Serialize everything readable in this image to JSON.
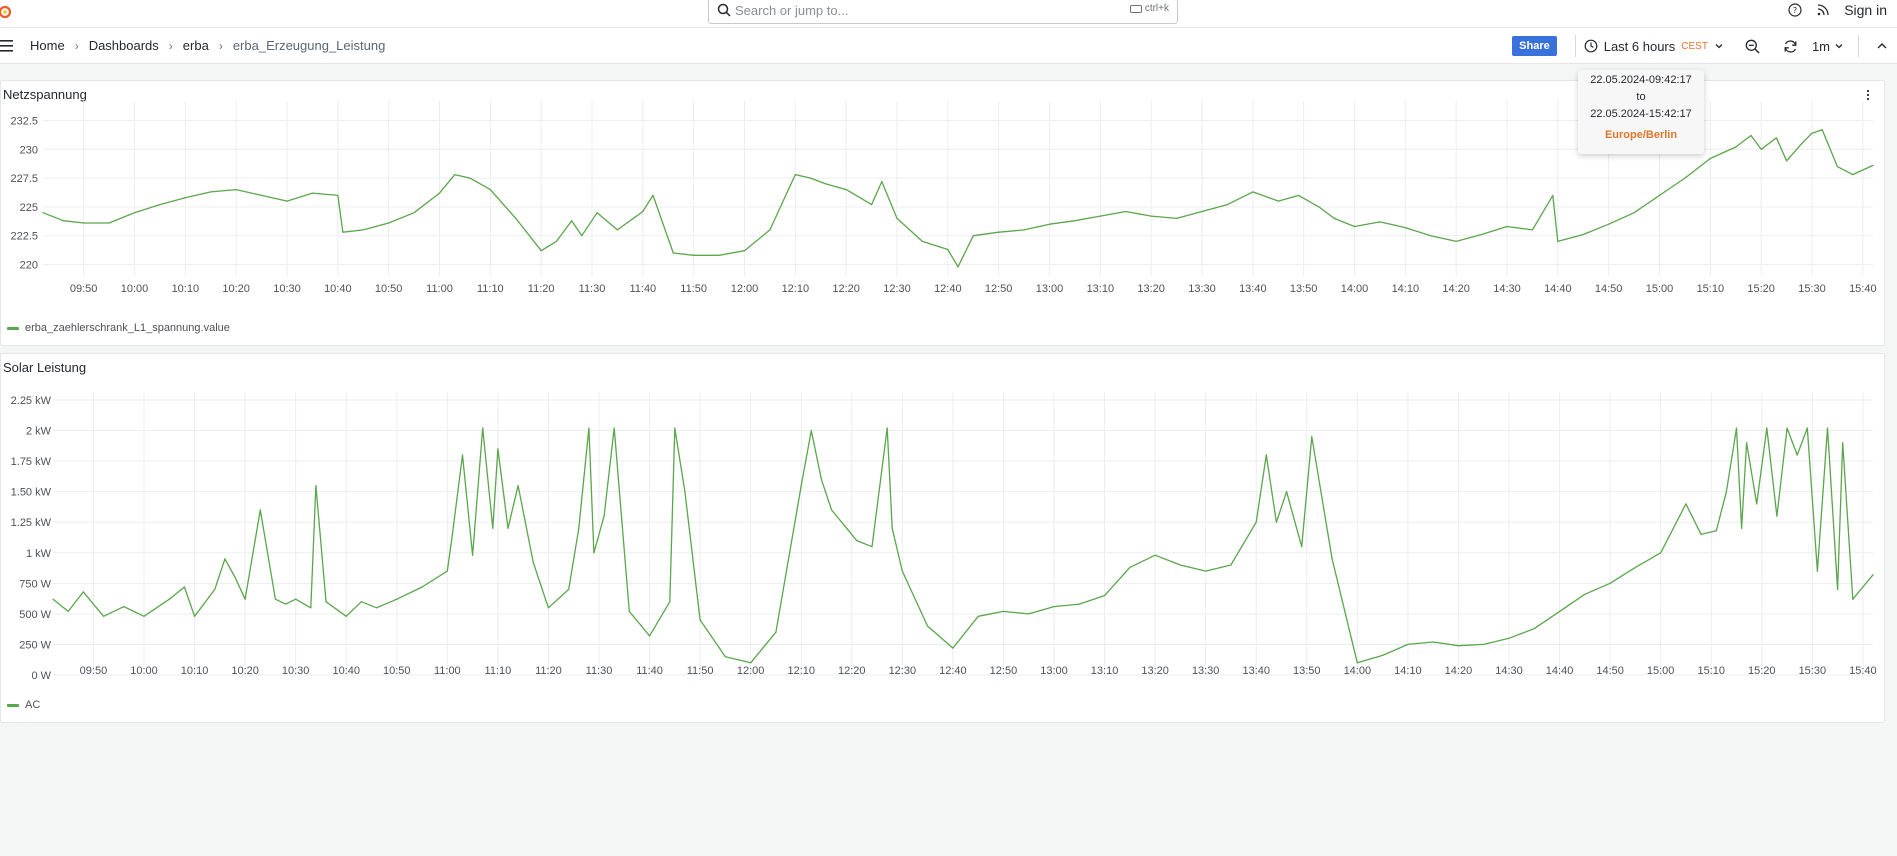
{
  "search": {
    "placeholder": "Search or jump to...",
    "shortcut": "ctrl+k"
  },
  "topbar": {
    "sign_in": "Sign in"
  },
  "breadcrumb": [
    "Home",
    "Dashboards",
    "erba",
    "erba_Erzeugung_Leistung"
  ],
  "toolbar": {
    "share_label": "Share",
    "time_range": "Last 6 hours",
    "timezone_badge": "CEST",
    "refresh_interval": "1m"
  },
  "tooltip": {
    "from": "22.05.2024-09:42:17",
    "to_word": "to",
    "to": "22.05.2024-15:42:17",
    "timezone": "Europe/Berlin"
  },
  "colors": {
    "series": "#5aa64b",
    "accent": "#3871dc",
    "timezone": "#e0752d"
  },
  "panels": [
    {
      "title": "Netzspannung",
      "legend": "erba_zaehlerschrank_L1_spannung.value"
    },
    {
      "title": "Solar Leistung",
      "legend": "AC"
    }
  ],
  "chart_data": [
    {
      "type": "line",
      "title": "Netzspannung",
      "x_ticks": [
        "09:50",
        "10:00",
        "10:10",
        "10:20",
        "10:30",
        "10:40",
        "10:50",
        "11:00",
        "11:10",
        "11:20",
        "11:30",
        "11:40",
        "11:50",
        "12:00",
        "12:10",
        "12:20",
        "12:30",
        "12:40",
        "12:50",
        "13:00",
        "13:10",
        "13:20",
        "13:30",
        "13:40",
        "13:50",
        "14:00",
        "14:10",
        "14:20",
        "14:30",
        "14:40",
        "14:50",
        "15:00",
        "15:10",
        "15:20",
        "15:30",
        "15:40"
      ],
      "y_ticks": [
        "220",
        "222.5",
        "225",
        "227.5",
        "230",
        "232.5"
      ],
      "ylim": [
        219,
        233.5
      ],
      "grid": true,
      "legend_position": "bottom-left",
      "series": [
        {
          "name": "erba_zaehlerschrank_L1_spannung.value",
          "x": [
            "09:42",
            "09:46",
            "09:50",
            "09:55",
            "10:00",
            "10:05",
            "10:10",
            "10:15",
            "10:20",
            "10:25",
            "10:30",
            "10:35",
            "10:40",
            "10:41",
            "10:45",
            "10:50",
            "10:55",
            "11:00",
            "11:03",
            "11:06",
            "11:10",
            "11:15",
            "11:20",
            "11:23",
            "11:26",
            "11:28",
            "11:31",
            "11:35",
            "11:40",
            "11:42",
            "11:46",
            "11:50",
            "11:55",
            "12:00",
            "12:05",
            "12:10",
            "12:13",
            "12:16",
            "12:20",
            "12:25",
            "12:27",
            "12:30",
            "12:35",
            "12:40",
            "12:42",
            "12:45",
            "12:50",
            "12:55",
            "13:00",
            "13:05",
            "13:10",
            "13:15",
            "13:20",
            "13:25",
            "13:30",
            "13:35",
            "13:40",
            "13:45",
            "13:49",
            "13:53",
            "13:56",
            "14:00",
            "14:05",
            "14:10",
            "14:15",
            "14:20",
            "14:25",
            "14:30",
            "14:35",
            "14:39",
            "14:40",
            "14:45",
            "14:50",
            "14:55",
            "15:00",
            "15:05",
            "15:10",
            "15:15",
            "15:18",
            "15:20",
            "15:23",
            "15:25",
            "15:28",
            "15:30",
            "15:32",
            "15:35",
            "15:38",
            "15:42"
          ],
          "y": [
            224.5,
            223.8,
            223.6,
            223.6,
            224.5,
            225.2,
            225.8,
            226.3,
            226.5,
            226.0,
            225.5,
            226.2,
            226.0,
            222.8,
            223.0,
            223.6,
            224.5,
            226.2,
            227.8,
            227.5,
            226.5,
            224.0,
            221.2,
            222.0,
            223.8,
            222.5,
            224.5,
            223.0,
            224.6,
            226.0,
            221.0,
            220.8,
            220.8,
            221.2,
            223.0,
            227.8,
            227.5,
            227.0,
            226.5,
            225.2,
            227.2,
            224.0,
            222.0,
            221.3,
            219.8,
            222.5,
            222.8,
            223.0,
            223.5,
            223.8,
            224.2,
            224.6,
            224.2,
            224.0,
            224.6,
            225.2,
            226.3,
            225.5,
            226.0,
            225.0,
            224.0,
            223.3,
            223.7,
            223.2,
            222.5,
            222.0,
            222.6,
            223.3,
            223.0,
            226.0,
            222.0,
            222.6,
            223.5,
            224.5,
            226.0,
            227.5,
            229.2,
            230.2,
            231.2,
            230.0,
            231.0,
            229.0,
            230.5,
            231.4,
            231.7,
            228.5,
            227.8,
            228.6
          ]
        }
      ]
    },
    {
      "type": "line",
      "title": "Solar Leistung",
      "x_ticks": [
        "09:50",
        "10:00",
        "10:10",
        "10:20",
        "10:30",
        "10:40",
        "10:50",
        "11:00",
        "11:10",
        "11:20",
        "11:30",
        "11:40",
        "11:50",
        "12:00",
        "12:10",
        "12:20",
        "12:30",
        "12:40",
        "12:50",
        "13:00",
        "13:10",
        "13:20",
        "13:30",
        "13:40",
        "13:50",
        "14:00",
        "14:10",
        "14:20",
        "14:30",
        "14:40",
        "14:50",
        "15:00",
        "15:10",
        "15:20",
        "15:30",
        "15:40"
      ],
      "y_ticks": [
        "0 W",
        "250 W",
        "500 W",
        "750 W",
        "1 kW",
        "1.25 kW",
        "1.50 kW",
        "1.75 kW",
        "2 kW",
        "2.25 kW"
      ],
      "ylim": [
        0,
        2.25
      ],
      "y_unit": "kW",
      "grid": true,
      "legend_position": "bottom-left",
      "series": [
        {
          "name": "AC",
          "x": [
            "09:42",
            "09:45",
            "09:48",
            "09:52",
            "09:56",
            "10:00",
            "10:05",
            "10:08",
            "10:10",
            "10:14",
            "10:16",
            "10:18",
            "10:20",
            "10:23",
            "10:26",
            "10:28",
            "10:30",
            "10:33",
            "10:34",
            "10:36",
            "10:40",
            "10:43",
            "10:46",
            "10:50",
            "10:55",
            "11:00",
            "11:01",
            "11:03",
            "11:05",
            "11:07",
            "11:09",
            "11:10",
            "11:12",
            "11:14",
            "11:17",
            "11:20",
            "11:24",
            "11:26",
            "11:28",
            "11:29",
            "11:31",
            "11:33",
            "11:36",
            "11:40",
            "11:44",
            "11:45",
            "11:47",
            "11:50",
            "11:55",
            "12:00",
            "12:05",
            "12:10",
            "12:12",
            "12:14",
            "12:16",
            "12:19",
            "12:21",
            "12:24",
            "12:27",
            "12:28",
            "12:30",
            "12:35",
            "12:40",
            "12:45",
            "12:50",
            "12:55",
            "13:00",
            "13:05",
            "13:10",
            "13:15",
            "13:20",
            "13:25",
            "13:30",
            "13:35",
            "13:40",
            "13:42",
            "13:44",
            "13:46",
            "13:49",
            "13:51",
            "13:55",
            "14:00",
            "14:05",
            "14:10",
            "14:15",
            "14:20",
            "14:25",
            "14:30",
            "14:35",
            "14:40",
            "14:45",
            "14:50",
            "14:55",
            "15:00",
            "15:05",
            "15:08",
            "15:11",
            "15:13",
            "15:15",
            "15:16",
            "15:17",
            "15:19",
            "15:21",
            "15:23",
            "15:25",
            "15:27",
            "15:29",
            "15:31",
            "15:33",
            "15:35",
            "15:36",
            "15:38",
            "15:40",
            "15:42"
          ],
          "y": [
            0.62,
            0.52,
            0.68,
            0.48,
            0.56,
            0.48,
            0.62,
            0.72,
            0.48,
            0.7,
            0.95,
            0.8,
            0.62,
            1.35,
            0.62,
            0.58,
            0.62,
            0.55,
            1.55,
            0.6,
            0.48,
            0.6,
            0.55,
            0.62,
            0.72,
            0.85,
            1.15,
            1.8,
            0.98,
            2.02,
            1.2,
            1.85,
            1.2,
            1.55,
            0.92,
            0.55,
            0.7,
            1.2,
            2.02,
            1.0,
            1.3,
            2.02,
            0.52,
            0.32,
            0.6,
            2.02,
            1.5,
            0.45,
            0.15,
            0.1,
            0.35,
            1.55,
            2.0,
            1.6,
            1.35,
            1.2,
            1.1,
            1.05,
            2.02,
            1.2,
            0.85,
            0.4,
            0.22,
            0.48,
            0.52,
            0.5,
            0.56,
            0.58,
            0.65,
            0.88,
            0.98,
            0.9,
            0.85,
            0.9,
            1.25,
            1.8,
            1.25,
            1.5,
            1.05,
            1.95,
            0.95,
            0.1,
            0.16,
            0.25,
            0.27,
            0.24,
            0.25,
            0.3,
            0.38,
            0.52,
            0.66,
            0.75,
            0.88,
            1.0,
            1.4,
            1.15,
            1.18,
            1.5,
            2.02,
            1.2,
            1.9,
            1.4,
            2.02,
            1.3,
            2.02,
            1.8,
            2.02,
            0.85,
            2.02,
            0.7,
            1.9,
            0.62,
            0.72,
            0.82
          ]
        }
      ]
    }
  ]
}
